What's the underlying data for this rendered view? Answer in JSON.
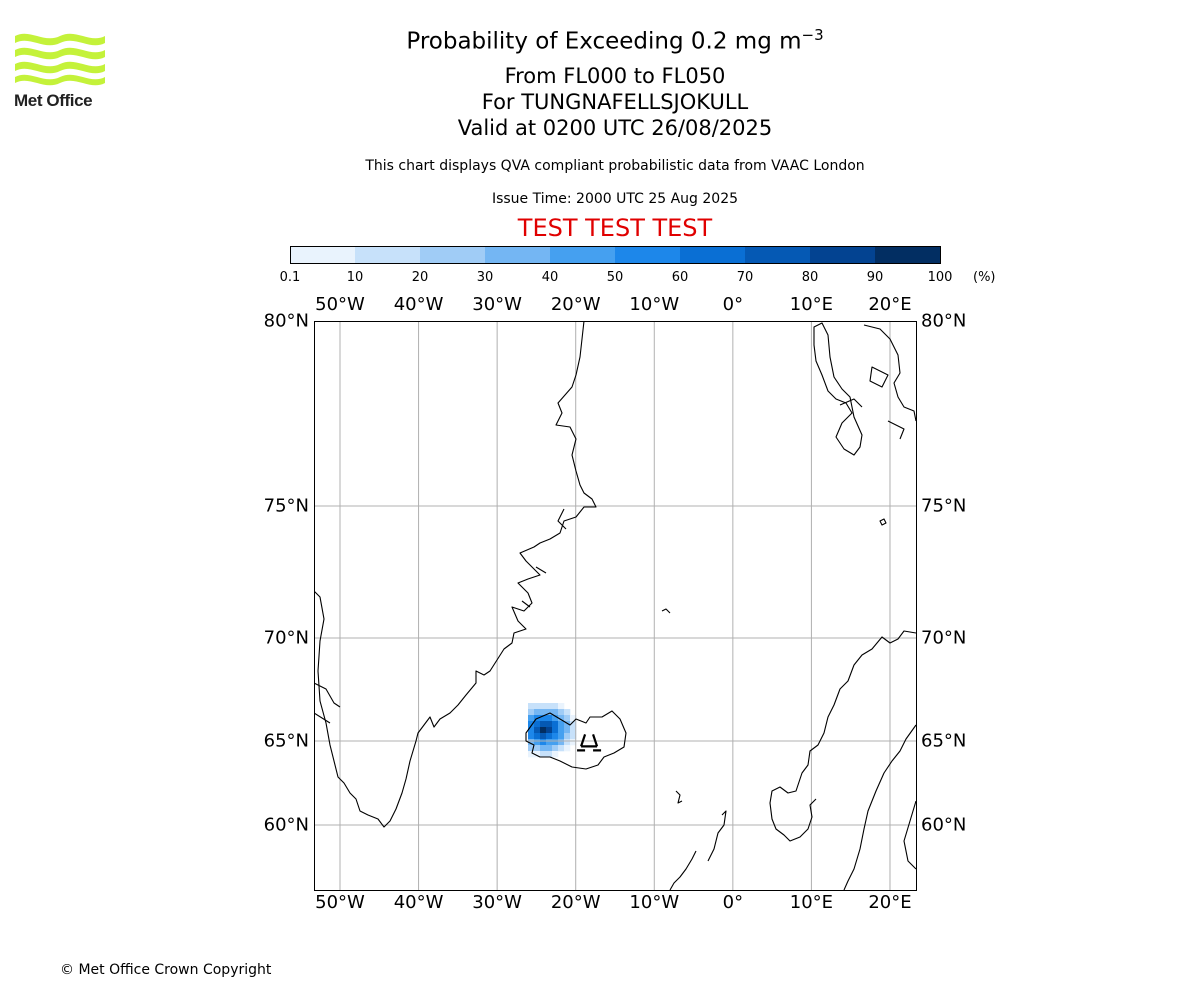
{
  "logo": {
    "text": "Met Office",
    "colors": {
      "waves": "#c4f23a",
      "text": "#222222"
    }
  },
  "title": {
    "line1_prefix": "Probability of Exceeding 0.2 mg m",
    "line1_exponent": "−3",
    "line2": "From FL000 to FL050",
    "line3": "For TUNGNAFELLSJOKULL",
    "line4": "Valid at 0200 UTC 26/08/2025",
    "note": "This chart displays QVA compliant probabilistic data from VAAC London",
    "issue_time": "Issue Time: 2000 UTC 25 Aug 2025",
    "test_banner": "TEST TEST TEST"
  },
  "colorbar": {
    "ticks": [
      "0.1",
      "10",
      "20",
      "30",
      "40",
      "50",
      "60",
      "70",
      "80",
      "90",
      "100"
    ],
    "unit": "(%)",
    "colors": [
      "#e9f3fd",
      "#c7e1fa",
      "#a0ccf6",
      "#74b6f3",
      "#45a0f0",
      "#1d87ea",
      "#0a6fd4",
      "#0559b4",
      "#034391",
      "#022e62"
    ]
  },
  "map": {
    "x_labels": [
      "50°W",
      "40°W",
      "30°W",
      "20°W",
      "10°W",
      "0°",
      "10°E",
      "20°E"
    ],
    "y_labels": [
      "80°N",
      "75°N",
      "70°N",
      "65°N",
      "60°N"
    ],
    "lon_values": [
      -50,
      -40,
      -30,
      -20,
      -10,
      0,
      10,
      20
    ],
    "lat_values": [
      80,
      75,
      70,
      65,
      60
    ],
    "grid": true,
    "volcano": {
      "name": "TUNGNAFELLSJOKULL",
      "icon": "volcano-icon",
      "lon": -18.3,
      "lat": 64.8
    }
  },
  "copyright": "© Met Office Crown Copyright"
}
